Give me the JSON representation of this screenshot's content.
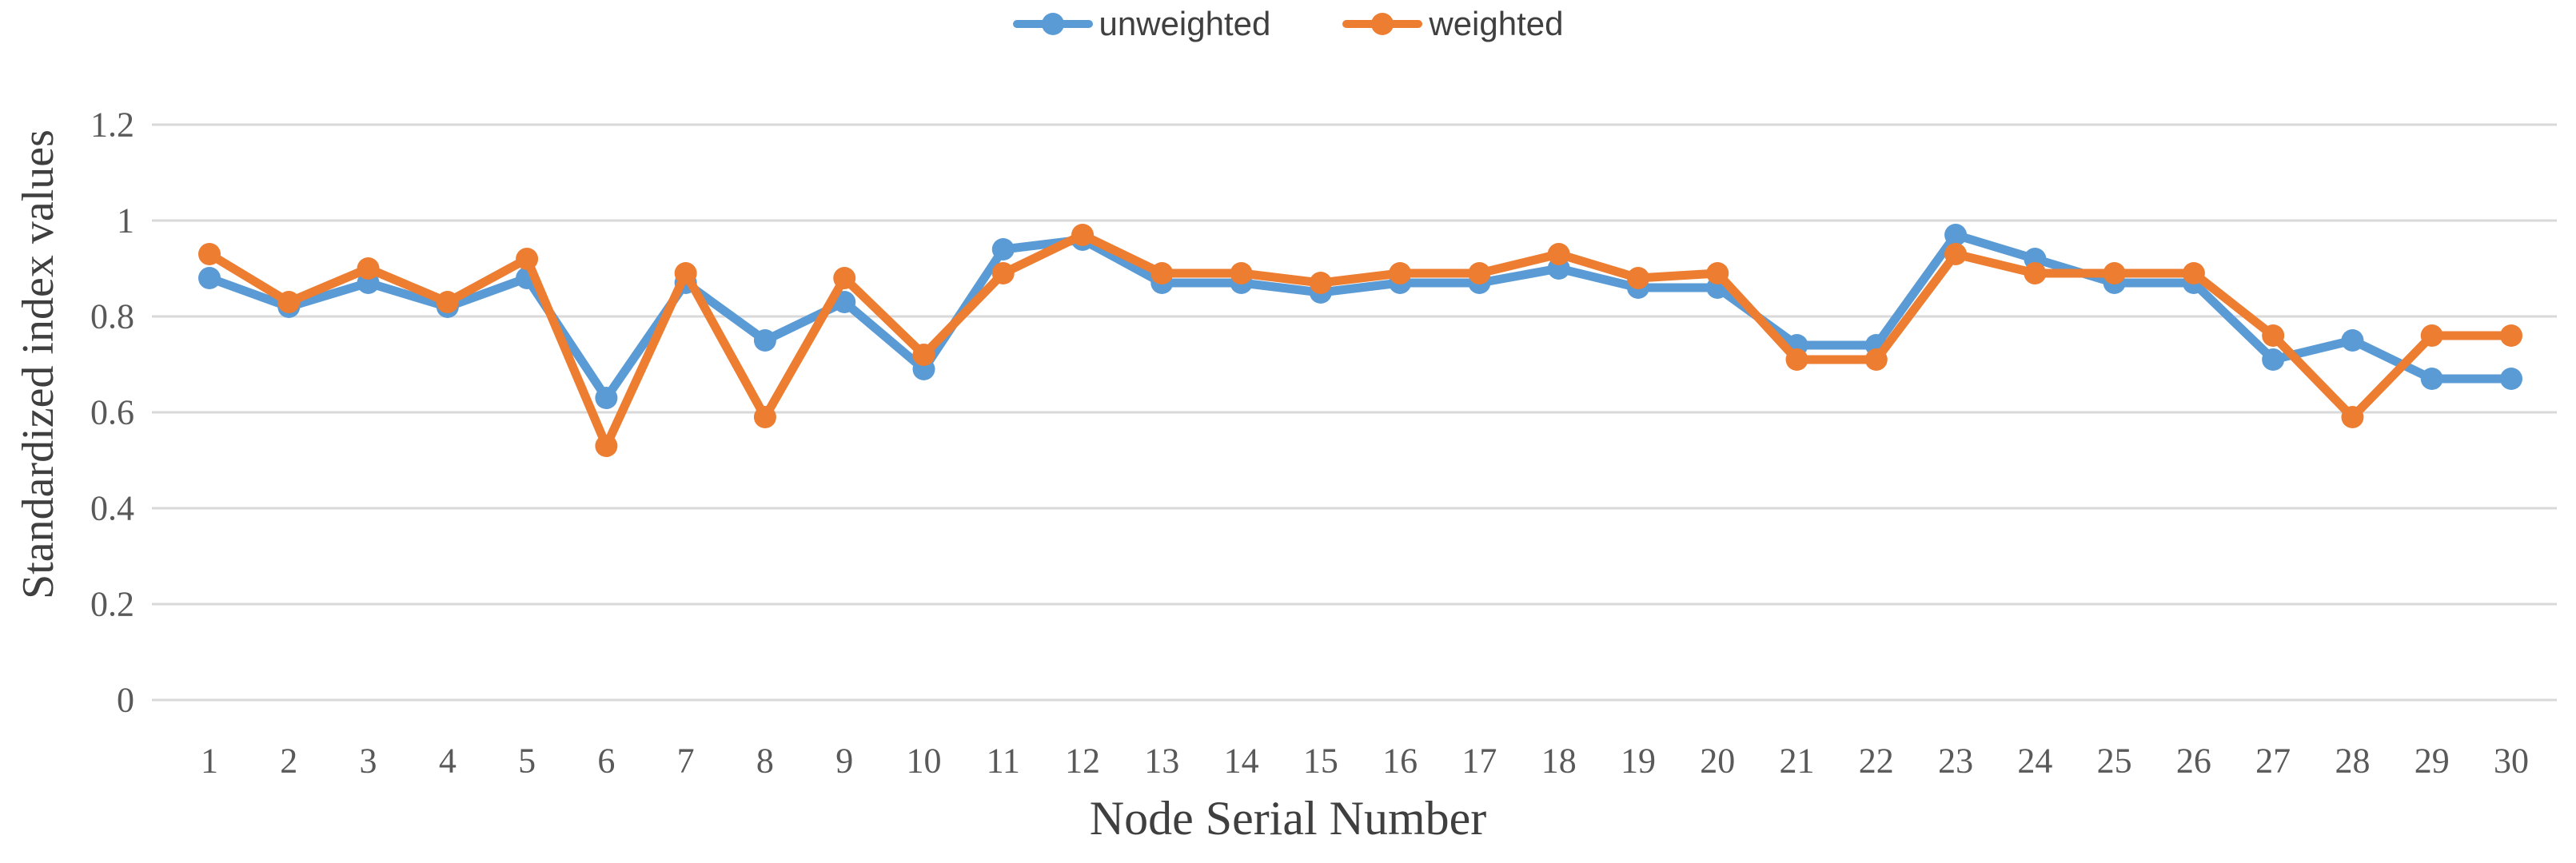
{
  "chart_data": {
    "type": "line",
    "title": "",
    "xlabel": "Node Serial Number",
    "ylabel": "Standardized index values",
    "categories": [
      1,
      2,
      3,
      4,
      5,
      6,
      7,
      8,
      9,
      10,
      11,
      12,
      13,
      14,
      15,
      16,
      17,
      18,
      19,
      20,
      21,
      22,
      23,
      24,
      25,
      26,
      27,
      28,
      29,
      30
    ],
    "series": [
      {
        "name": "unweighted",
        "color": "#5B9BD5",
        "values": [
          0.88,
          0.82,
          0.87,
          0.82,
          0.88,
          0.63,
          0.87,
          0.75,
          0.83,
          0.69,
          0.94,
          0.96,
          0.87,
          0.87,
          0.85,
          0.87,
          0.87,
          0.9,
          0.86,
          0.86,
          0.74,
          0.74,
          0.97,
          0.92,
          0.87,
          0.87,
          0.71,
          0.75,
          0.67,
          0.67
        ]
      },
      {
        "name": "weighted",
        "color": "#ED7D31",
        "values": [
          0.93,
          0.83,
          0.9,
          0.83,
          0.92,
          0.53,
          0.89,
          0.59,
          0.88,
          0.72,
          0.89,
          0.97,
          0.89,
          0.89,
          0.87,
          0.89,
          0.89,
          0.93,
          0.88,
          0.89,
          0.71,
          0.71,
          0.93,
          0.89,
          0.89,
          0.89,
          0.76,
          0.59,
          0.76,
          0.76
        ]
      }
    ],
    "ylim": [
      0,
      1.2
    ],
    "yticks": [
      0,
      0.2,
      0.4,
      0.6,
      0.8,
      1,
      1.2
    ],
    "ytick_labels": [
      "0",
      "0.2",
      "0.4",
      "0.6",
      "0.8",
      "1",
      "1.2"
    ],
    "grid": "horizontal-only",
    "gridline_color": "#D9D9D9",
    "tick_text_color": "#595959",
    "legend_position": "top-center",
    "marker_shape": "circle"
  }
}
